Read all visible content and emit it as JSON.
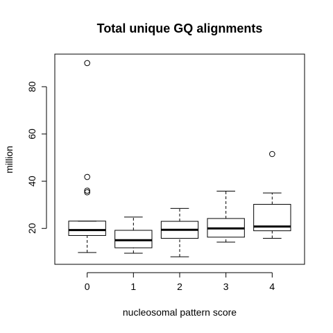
{
  "chart_data": {
    "type": "box",
    "title": "Total unique GQ alignments",
    "xlabel": "nucleosomal pattern score",
    "ylabel": "million",
    "categories": [
      "0",
      "1",
      "2",
      "3",
      "4"
    ],
    "y_ticks": [
      20,
      40,
      60,
      80
    ],
    "ylim": [
      4.8,
      93.8
    ],
    "grid": false,
    "legend": "none",
    "boxes": [
      {
        "category": "0",
        "whisker_low": 9.8,
        "q1": 17.0,
        "median": 19.3,
        "q3": 23.1,
        "whisker_high": 23.1,
        "outliers": [
          35.3,
          36.0,
          41.8,
          90.0
        ]
      },
      {
        "category": "1",
        "whisker_low": 9.5,
        "q1": 11.8,
        "median": 15.0,
        "q3": 19.2,
        "whisker_high": 24.8,
        "outliers": []
      },
      {
        "category": "2",
        "whisker_low": 8.0,
        "q1": 15.8,
        "median": 19.4,
        "q3": 23.0,
        "whisker_high": 28.5,
        "outliers": []
      },
      {
        "category": "3",
        "whisker_low": 14.2,
        "q1": 16.3,
        "median": 20.0,
        "q3": 24.2,
        "whisker_high": 35.8,
        "outliers": []
      },
      {
        "category": "4",
        "whisker_low": 15.8,
        "q1": 19.0,
        "median": 20.8,
        "q3": 30.2,
        "whisker_high": 35.0,
        "outliers": [
          51.5
        ]
      }
    ]
  }
}
